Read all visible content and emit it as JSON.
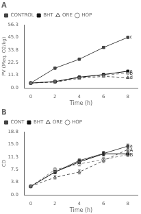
{
  "chart_data": [
    {
      "type": "line",
      "title": "A",
      "x_label": "Time (h)",
      "y_label": "PV (Meq. O2/kg)",
      "x": [
        0,
        2,
        4,
        6,
        8
      ],
      "xlim": [
        -0.5,
        8.8
      ],
      "xticks": [
        0,
        2,
        4,
        6,
        8
      ],
      "ylim": [
        0,
        56.3
      ],
      "yticks": [
        {
          "value": 0,
          "label": "0.0"
        },
        11.3,
        22.5,
        33.8,
        {
          "value": 45,
          "label": "45.0"
        },
        56.3
      ],
      "grid": false,
      "legend": "upper left",
      "series": [
        {
          "name": "CONTROL",
          "color": "#444444",
          "marker": "square",
          "line_style": "solid",
          "values": [
            4.2,
            17.5,
            25.5,
            36.0,
            45.0
          ],
          "errors": [
            0.3,
            0.7,
            0.6,
            0.8,
            0.7
          ]
        },
        {
          "name": "BHT",
          "color": "#111111",
          "marker": "square",
          "line_style": "solid",
          "values": [
            4.2,
            5.5,
            9.5,
            11.8,
            14.8
          ],
          "errors": [
            0.3,
            0.4,
            0.5,
            0.5,
            0.6
          ]
        },
        {
          "name": "ORE",
          "color": "#555555",
          "marker": "open_triangle",
          "line_style": "dashed",
          "values": [
            4.2,
            5.0,
            8.5,
            10.2,
            9.0
          ],
          "errors": [
            0.3,
            0.4,
            0.5,
            0.5,
            0.5
          ]
        },
        {
          "name": "HOP",
          "color": "#888888",
          "marker": "open_circle",
          "line_style": "dashed",
          "values": [
            4.2,
            5.8,
            9.2,
            11.2,
            13.2
          ],
          "errors": [
            0.3,
            0.4,
            0.5,
            0.5,
            0.6
          ]
        }
      ],
      "annotations": [
        {
          "text": "c",
          "x": 8.15,
          "y": 45.0
        },
        {
          "text": "a",
          "x": 8.15,
          "y": 14.8
        },
        {
          "text": "b",
          "x": 8.15,
          "y": 13.0
        },
        {
          "text": "d",
          "x": 8.15,
          "y": 9.0
        }
      ]
    },
    {
      "type": "line",
      "title": "B",
      "x_label": "Time (h)",
      "y_label": "CD",
      "x": [
        0,
        2,
        4,
        6,
        8
      ],
      "xlim": [
        -0.5,
        8.8
      ],
      "xticks": [
        0,
        2,
        4,
        6,
        8
      ],
      "ylim": [
        0,
        18.8
      ],
      "yticks": [
        {
          "value": 0,
          "label": "0.0"
        },
        3.8,
        7.5,
        11.3,
        {
          "value": 15,
          "label": "15.0"
        },
        18.8
      ],
      "grid": false,
      "legend": "upper left",
      "series": [
        {
          "name": "CONT",
          "color": "#444444",
          "marker": "square",
          "line_style": "solid",
          "values": [
            2.5,
            6.8,
            10.2,
            12.3,
            14.5
          ],
          "errors": [
            0.2,
            0.5,
            0.5,
            0.6,
            0.6
          ]
        },
        {
          "name": "BHT",
          "color": "#111111",
          "marker": "square",
          "line_style": "solid",
          "values": [
            2.5,
            6.8,
            9.8,
            12.2,
            12.2
          ],
          "errors": [
            0.2,
            0.5,
            0.5,
            0.6,
            0.6
          ]
        },
        {
          "name": "ORE",
          "color": "#555555",
          "marker": "open_triangle",
          "line_style": "dashed",
          "values": [
            2.5,
            5.2,
            6.8,
            10.2,
            13.5
          ],
          "errors": [
            0.2,
            0.5,
            0.6,
            0.6,
            0.6
          ]
        },
        {
          "name": "HOP",
          "color": "#888888",
          "marker": "open_circle",
          "line_style": "dashed",
          "values": [
            2.5,
            7.5,
            9.2,
            10.5,
            12.0
          ],
          "errors": [
            0.2,
            0.5,
            0.6,
            0.6,
            0.6
          ]
        }
      ],
      "annotations": [
        {
          "text": "a",
          "x": 8.15,
          "y": 14.5
        },
        {
          "text": "A",
          "x": 8.15,
          "y": 13.2
        },
        {
          "text": "B",
          "x": 8.15,
          "y": 11.8
        }
      ]
    }
  ]
}
